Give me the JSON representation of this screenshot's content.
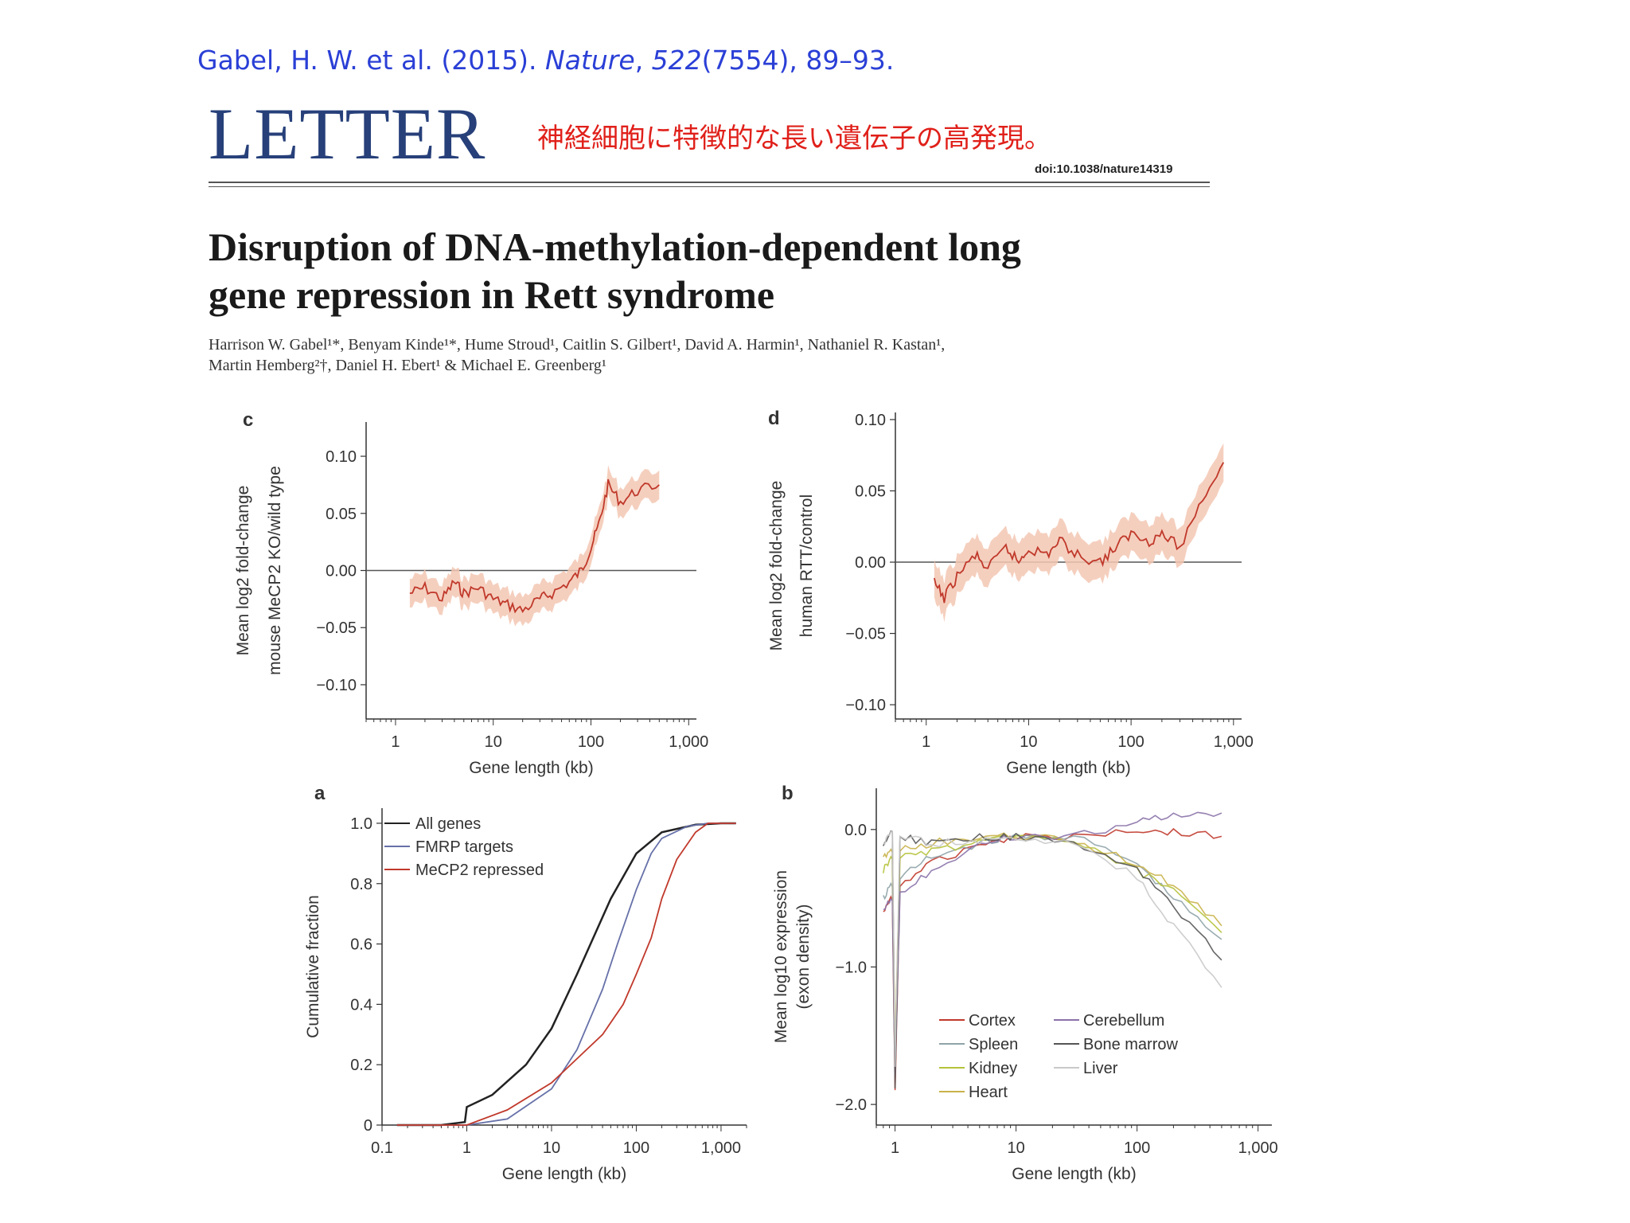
{
  "citation": {
    "authors_year": "Gabel, H. W. et al. (2015). ",
    "journal": "Nature",
    "sep": ", ",
    "volume": "522",
    "issue_pages": "(7554), 89–93."
  },
  "header": {
    "letter": "LETTER",
    "japanese_note": "神経細胞に特徴的な長い遺伝子の高発現。",
    "doi": "doi:10.1038/nature14319"
  },
  "article": {
    "title_line1": "Disruption of DNA-methylation-dependent long",
    "title_line2": "gene repression in Rett syndrome",
    "authors_line1": "Harrison W. Gabel¹*, Benyam Kinde¹*, Hume Stroud¹, Caitlin S. Gilbert¹, David A. Harmin¹, Nathaniel R. Kastan¹,",
    "authors_line2": "Martin Hemberg²†, Daniel H. Ebert¹ & Michael E. Greenberg¹"
  },
  "colors": {
    "red": "#c0392b",
    "red_band": "#f3c7b3",
    "blue": "#6670a8",
    "black": "#222222"
  },
  "chart_data": [
    {
      "panel": "c",
      "type": "line",
      "xlabel": "Gene length (kb)",
      "ylabel_line1": "Mean log2 fold-change",
      "ylabel_line2": "mouse MeCP2 KO/wild type",
      "x_scale": "log",
      "xlim": [
        0.5,
        1200
      ],
      "ylim": [
        -0.13,
        0.13
      ],
      "x_ticks": [
        "1",
        "10",
        "100",
        "1,000"
      ],
      "y_ticks": [
        "0.10",
        "0.05",
        "0.00",
        "−0.05",
        "−0.10"
      ],
      "series": [
        {
          "x": [
            1.4,
            2,
            3,
            4,
            5,
            7,
            10,
            14,
            20,
            30,
            40,
            60,
            80,
            100,
            120,
            150,
            200,
            300,
            500
          ],
          "y": [
            -0.02,
            -0.015,
            -0.025,
            -0.01,
            -0.02,
            -0.015,
            -0.025,
            -0.03,
            -0.035,
            -0.025,
            -0.02,
            -0.01,
            0.0,
            0.02,
            0.04,
            0.075,
            0.06,
            0.07,
            0.075
          ]
        }
      ]
    },
    {
      "panel": "d",
      "type": "line",
      "xlabel": "Gene length (kb)",
      "ylabel_line1": "Mean log2 fold-change",
      "ylabel_line2": "human RTT/control",
      "x_scale": "log",
      "xlim": [
        0.5,
        1200
      ],
      "ylim": [
        -0.11,
        0.105
      ],
      "x_ticks": [
        "1",
        "10",
        "100",
        "1,000"
      ],
      "y_ticks": [
        "0.10",
        "0.05",
        "0.00",
        "−0.05",
        "−0.10"
      ],
      "series": [
        {
          "x": [
            1.2,
            1.5,
            2,
            3,
            4,
            6,
            8,
            10,
            15,
            20,
            30,
            50,
            70,
            100,
            150,
            200,
            300,
            500,
            800
          ],
          "y": [
            -0.015,
            -0.025,
            -0.01,
            0.005,
            -0.005,
            0.01,
            0.0,
            0.01,
            0.005,
            0.015,
            0.005,
            0.0,
            0.01,
            0.02,
            0.015,
            0.02,
            0.01,
            0.045,
            0.07
          ]
        }
      ]
    },
    {
      "panel": "a",
      "type": "line",
      "xlabel": "Gene length (kb)",
      "ylabel": "Cumulative fraction",
      "x_scale": "log",
      "xlim": [
        0.1,
        2000
      ],
      "ylim": [
        0,
        1.05
      ],
      "x_ticks": [
        "0.1",
        "1",
        "10",
        "100",
        "1,000"
      ],
      "y_ticks": [
        "1.0",
        "0.8",
        "0.6",
        "0.4",
        "0.2",
        "0"
      ],
      "series": [
        {
          "name": "All genes",
          "color": "#222222",
          "x": [
            0.15,
            0.5,
            0.95,
            1,
            2,
            5,
            10,
            20,
            50,
            100,
            200,
            500,
            1000,
            1500
          ],
          "y": [
            0,
            0,
            0.01,
            0.06,
            0.1,
            0.2,
            0.32,
            0.5,
            0.75,
            0.9,
            0.97,
            0.995,
            1.0,
            1.0
          ]
        },
        {
          "name": "FMRP targets",
          "color": "#6670a8",
          "x": [
            0.15,
            1,
            3,
            10,
            20,
            40,
            60,
            100,
            150,
            200,
            400,
            700,
            1500
          ],
          "y": [
            0,
            0,
            0.02,
            0.12,
            0.25,
            0.45,
            0.6,
            0.78,
            0.9,
            0.95,
            0.99,
            1.0,
            1.0
          ]
        },
        {
          "name": "MeCP2 repressed",
          "color": "#c0392b",
          "x": [
            0.15,
            1,
            3,
            10,
            20,
            40,
            70,
            100,
            150,
            200,
            300,
            500,
            700,
            1500
          ],
          "y": [
            0,
            0,
            0.05,
            0.14,
            0.22,
            0.3,
            0.4,
            0.5,
            0.62,
            0.75,
            0.88,
            0.97,
            1.0,
            1.0
          ]
        }
      ]
    },
    {
      "panel": "b",
      "type": "line",
      "xlabel": "Gene length (kb)",
      "ylabel_line1": "Mean log10 expression",
      "ylabel_line2": "(exon density)",
      "x_scale": "log",
      "xlim": [
        0.7,
        1300
      ],
      "ylim": [
        -2.15,
        0.3
      ],
      "x_ticks": [
        "1",
        "10",
        "100",
        "1,000"
      ],
      "y_ticks": [
        "0.0",
        "−1.0",
        "−2.0"
      ],
      "legend": [
        "Cortex",
        "Spleen",
        "Kidney",
        "Heart",
        "Cerebellum",
        "Bone marrow",
        "Liver"
      ],
      "series": [
        {
          "name": "Cortex",
          "color": "#c0392b",
          "x": [
            0.8,
            0.95,
            1,
            1.1,
            2,
            5,
            10,
            30,
            100,
            200,
            500
          ],
          "y": [
            -0.6,
            -0.5,
            -1.9,
            -0.4,
            -0.25,
            -0.1,
            -0.05,
            -0.05,
            0.0,
            -0.02,
            -0.05
          ]
        },
        {
          "name": "Spleen",
          "color": "#8fa3a8",
          "x": [
            0.8,
            0.95,
            1,
            1.1,
            2,
            5,
            10,
            30,
            100,
            200,
            500
          ],
          "y": [
            -0.5,
            -0.4,
            -1.8,
            -0.35,
            -0.2,
            -0.1,
            -0.05,
            -0.05,
            -0.25,
            -0.5,
            -0.8
          ]
        },
        {
          "name": "Kidney",
          "color": "#b5c23a",
          "x": [
            0.8,
            0.95,
            1,
            1.1,
            2,
            5,
            10,
            30,
            100,
            200,
            500
          ],
          "y": [
            -0.3,
            -0.2,
            -1.7,
            -0.2,
            -0.15,
            -0.1,
            -0.05,
            -0.08,
            -0.3,
            -0.45,
            -0.75
          ]
        },
        {
          "name": "Heart",
          "color": "#c9b24a",
          "x": [
            0.8,
            0.95,
            1,
            1.1,
            2,
            5,
            10,
            30,
            100,
            200,
            500
          ],
          "y": [
            -0.2,
            -0.15,
            -1.6,
            -0.15,
            -0.1,
            -0.05,
            -0.05,
            -0.08,
            -0.25,
            -0.4,
            -0.7
          ]
        },
        {
          "name": "Cerebellum",
          "color": "#8a72a8",
          "x": [
            0.8,
            0.95,
            1,
            1.1,
            2,
            5,
            10,
            30,
            100,
            200,
            500
          ],
          "y": [
            -0.6,
            -0.5,
            -1.8,
            -0.45,
            -0.3,
            -0.1,
            -0.05,
            -0.05,
            0.05,
            0.1,
            0.12
          ]
        },
        {
          "name": "Bone marrow",
          "color": "#555555",
          "x": [
            0.8,
            0.95,
            1,
            1.1,
            2,
            5,
            10,
            30,
            100,
            200,
            500
          ],
          "y": [
            -0.1,
            0.0,
            -1.9,
            -0.05,
            -0.1,
            -0.05,
            -0.05,
            -0.1,
            -0.3,
            -0.55,
            -0.95
          ]
        },
        {
          "name": "Liver",
          "color": "#c9c9c9",
          "x": [
            0.8,
            0.95,
            1,
            1.1,
            2,
            5,
            10,
            30,
            100,
            200,
            500
          ],
          "y": [
            -0.1,
            0.0,
            -1.7,
            -0.05,
            -0.1,
            -0.08,
            -0.08,
            -0.1,
            -0.35,
            -0.7,
            -1.15
          ]
        }
      ]
    }
  ]
}
